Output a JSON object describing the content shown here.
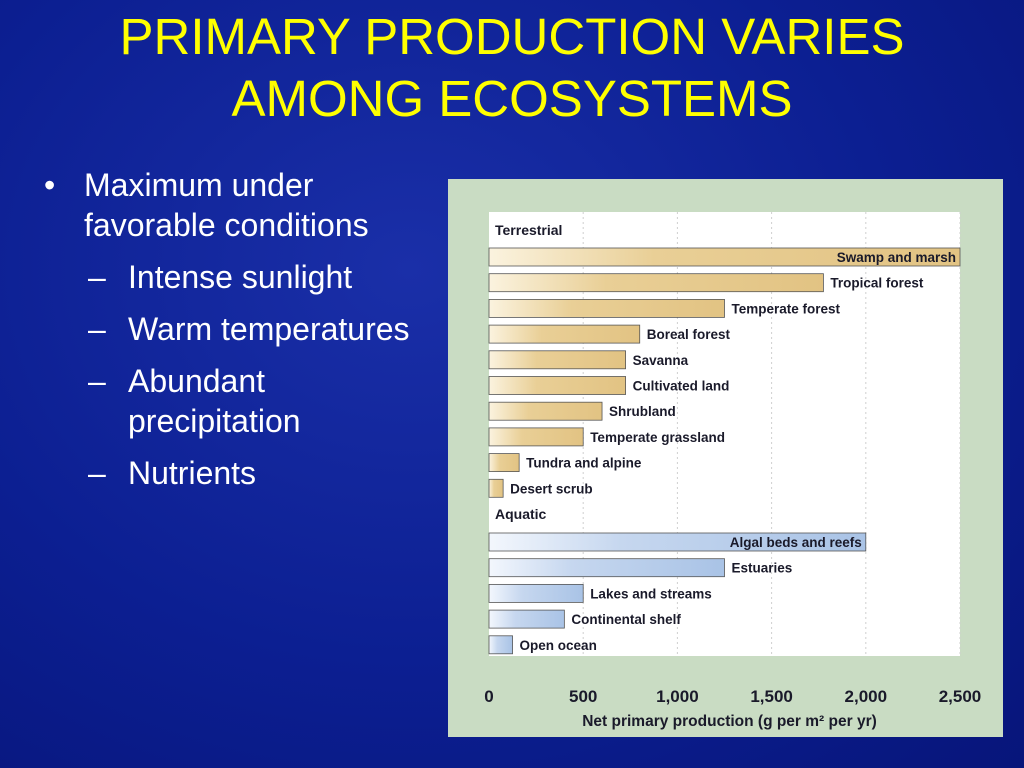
{
  "slide": {
    "title_line1": "PRIMARY PRODUCTION VARIES",
    "title_line2": "AMONG ECOSYSTEMS"
  },
  "bullets": {
    "main": "Maximum under favorable conditions",
    "subs": [
      "Intense sunlight",
      "Warm temperatures",
      "Abundant precipitation",
      "Nutrients"
    ]
  },
  "colors": {
    "background": "#0c1f92",
    "title": "#ffff00",
    "terrestrial_bar": "#e2c383",
    "aquatic_bar": "#a9c3e6",
    "chart_frame": "#c9dcc3"
  },
  "chart_data": {
    "type": "bar",
    "orientation": "horizontal",
    "xlabel": "Net primary production (g per m² per yr)",
    "xlim": [
      0,
      2500
    ],
    "xticks": [
      "0",
      "500",
      "1,000",
      "1,500",
      "2,000",
      "2,500"
    ],
    "grid": true,
    "groups": [
      {
        "name": "Terrestrial",
        "categories": [
          "Swamp and marsh",
          "Tropical forest",
          "Temperate forest",
          "Boreal forest",
          "Savanna",
          "Cultivated land",
          "Shrubland",
          "Temperate grassland",
          "Tundra and alpine",
          "Desert scrub"
        ],
        "values": [
          2500,
          1775,
          1250,
          800,
          725,
          725,
          600,
          500,
          160,
          75
        ]
      },
      {
        "name": "Aquatic",
        "categories": [
          "Algal beds and reefs",
          "Estuaries",
          "Lakes and streams",
          "Continental shelf",
          "Open ocean"
        ],
        "values": [
          2000,
          1250,
          500,
          400,
          125
        ]
      }
    ]
  }
}
